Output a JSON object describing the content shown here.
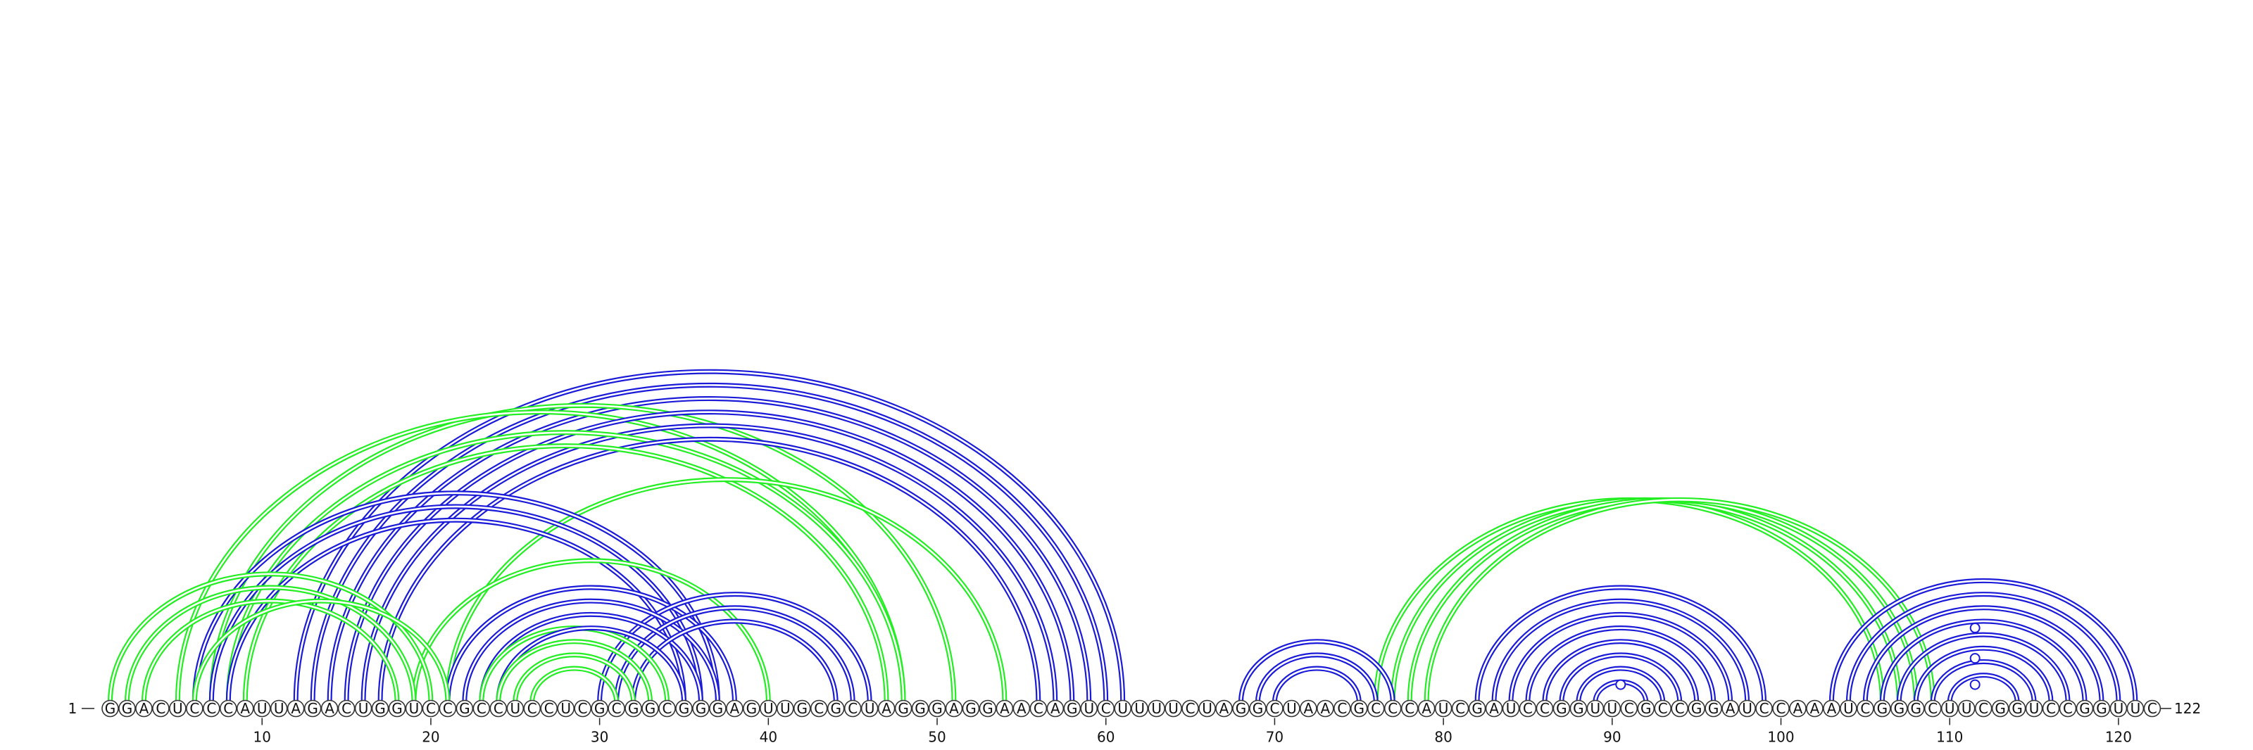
{
  "diagram": {
    "type": "rna-arc-diagram",
    "sequence": "GGACUCCCAUUAGACUGGUCCGCCUCCUCGCGGCGGGAGUUGCGCUAGGGAGGAACAGUCUUUUCUAGGCUAACGCCCAUCGAUCCGGUUCGCCGGAUCCAAAUCGGGCUUCGGUCCGGUUC",
    "start_label": "1",
    "end_label": "122",
    "ticks": [
      10,
      20,
      30,
      40,
      50,
      60,
      70,
      80,
      90,
      100,
      110,
      120
    ],
    "colors": {
      "green": "#22ee22",
      "blue": "#1a1ad8"
    },
    "loop_markers": [
      {
        "pos": 90.5,
        "height_nt": 2.6
      },
      {
        "pos": 111.5,
        "height_nt": 2.6
      },
      {
        "pos": 111.5,
        "height_nt": 6.5
      },
      {
        "pos": 111.5,
        "height_nt": 11.0
      }
    ],
    "arcs": [
      {
        "i": 1,
        "j": 20,
        "color": "green"
      },
      {
        "i": 2,
        "j": 19,
        "color": "green"
      },
      {
        "i": 3,
        "j": 18,
        "color": "green"
      },
      {
        "i": 5,
        "j": 48,
        "color": "green"
      },
      {
        "i": 6,
        "j": 21,
        "color": "green"
      },
      {
        "i": 7,
        "j": 51,
        "color": "green"
      },
      {
        "i": 8,
        "j": 48,
        "color": "green"
      },
      {
        "i": 9,
        "j": 47,
        "color": "green"
      },
      {
        "i": 19,
        "j": 40,
        "color": "green"
      },
      {
        "i": 21,
        "j": 54,
        "color": "green"
      },
      {
        "i": 23,
        "j": 34,
        "color": "green"
      },
      {
        "i": 24,
        "j": 33,
        "color": "green"
      },
      {
        "i": 25,
        "j": 32,
        "color": "green"
      },
      {
        "i": 26,
        "j": 31,
        "color": "green"
      },
      {
        "i": 76,
        "j": 106,
        "color": "green"
      },
      {
        "i": 77,
        "j": 107,
        "color": "green"
      },
      {
        "i": 78,
        "j": 108,
        "color": "green"
      },
      {
        "i": 79,
        "j": 109,
        "color": "green"
      },
      {
        "i": 6,
        "j": 37,
        "color": "blue"
      },
      {
        "i": 7,
        "j": 36,
        "color": "blue"
      },
      {
        "i": 8,
        "j": 35,
        "color": "blue"
      },
      {
        "i": 12,
        "j": 61,
        "color": "blue"
      },
      {
        "i": 13,
        "j": 60,
        "color": "blue"
      },
      {
        "i": 14,
        "j": 59,
        "color": "blue"
      },
      {
        "i": 15,
        "j": 58,
        "color": "blue"
      },
      {
        "i": 16,
        "j": 57,
        "color": "blue"
      },
      {
        "i": 17,
        "j": 56,
        "color": "blue"
      },
      {
        "i": 21,
        "j": 38,
        "color": "blue"
      },
      {
        "i": 22,
        "j": 37,
        "color": "blue"
      },
      {
        "i": 23,
        "j": 36,
        "color": "blue"
      },
      {
        "i": 24,
        "j": 35,
        "color": "blue"
      },
      {
        "i": 30,
        "j": 46,
        "color": "blue"
      },
      {
        "i": 31,
        "j": 45,
        "color": "blue"
      },
      {
        "i": 32,
        "j": 44,
        "color": "blue"
      },
      {
        "i": 68,
        "j": 77,
        "color": "blue"
      },
      {
        "i": 69,
        "j": 76,
        "color": "blue"
      },
      {
        "i": 70,
        "j": 75,
        "color": "blue"
      },
      {
        "i": 82,
        "j": 99,
        "color": "blue"
      },
      {
        "i": 83,
        "j": 98,
        "color": "blue"
      },
      {
        "i": 84,
        "j": 97,
        "color": "blue"
      },
      {
        "i": 85,
        "j": 96,
        "color": "blue"
      },
      {
        "i": 86,
        "j": 95,
        "color": "blue"
      },
      {
        "i": 87,
        "j": 94,
        "color": "blue"
      },
      {
        "i": 88,
        "j": 93,
        "color": "blue"
      },
      {
        "i": 89,
        "j": 92,
        "color": "blue"
      },
      {
        "i": 103,
        "j": 121,
        "color": "blue"
      },
      {
        "i": 104,
        "j": 120,
        "color": "blue"
      },
      {
        "i": 105,
        "j": 119,
        "color": "blue"
      },
      {
        "i": 106,
        "j": 118,
        "color": "blue"
      },
      {
        "i": 107,
        "j": 117,
        "color": "blue"
      },
      {
        "i": 108,
        "j": 116,
        "color": "blue"
      },
      {
        "i": 109,
        "j": 115,
        "color": "blue"
      },
      {
        "i": 110,
        "j": 114,
        "color": "blue"
      }
    ]
  }
}
